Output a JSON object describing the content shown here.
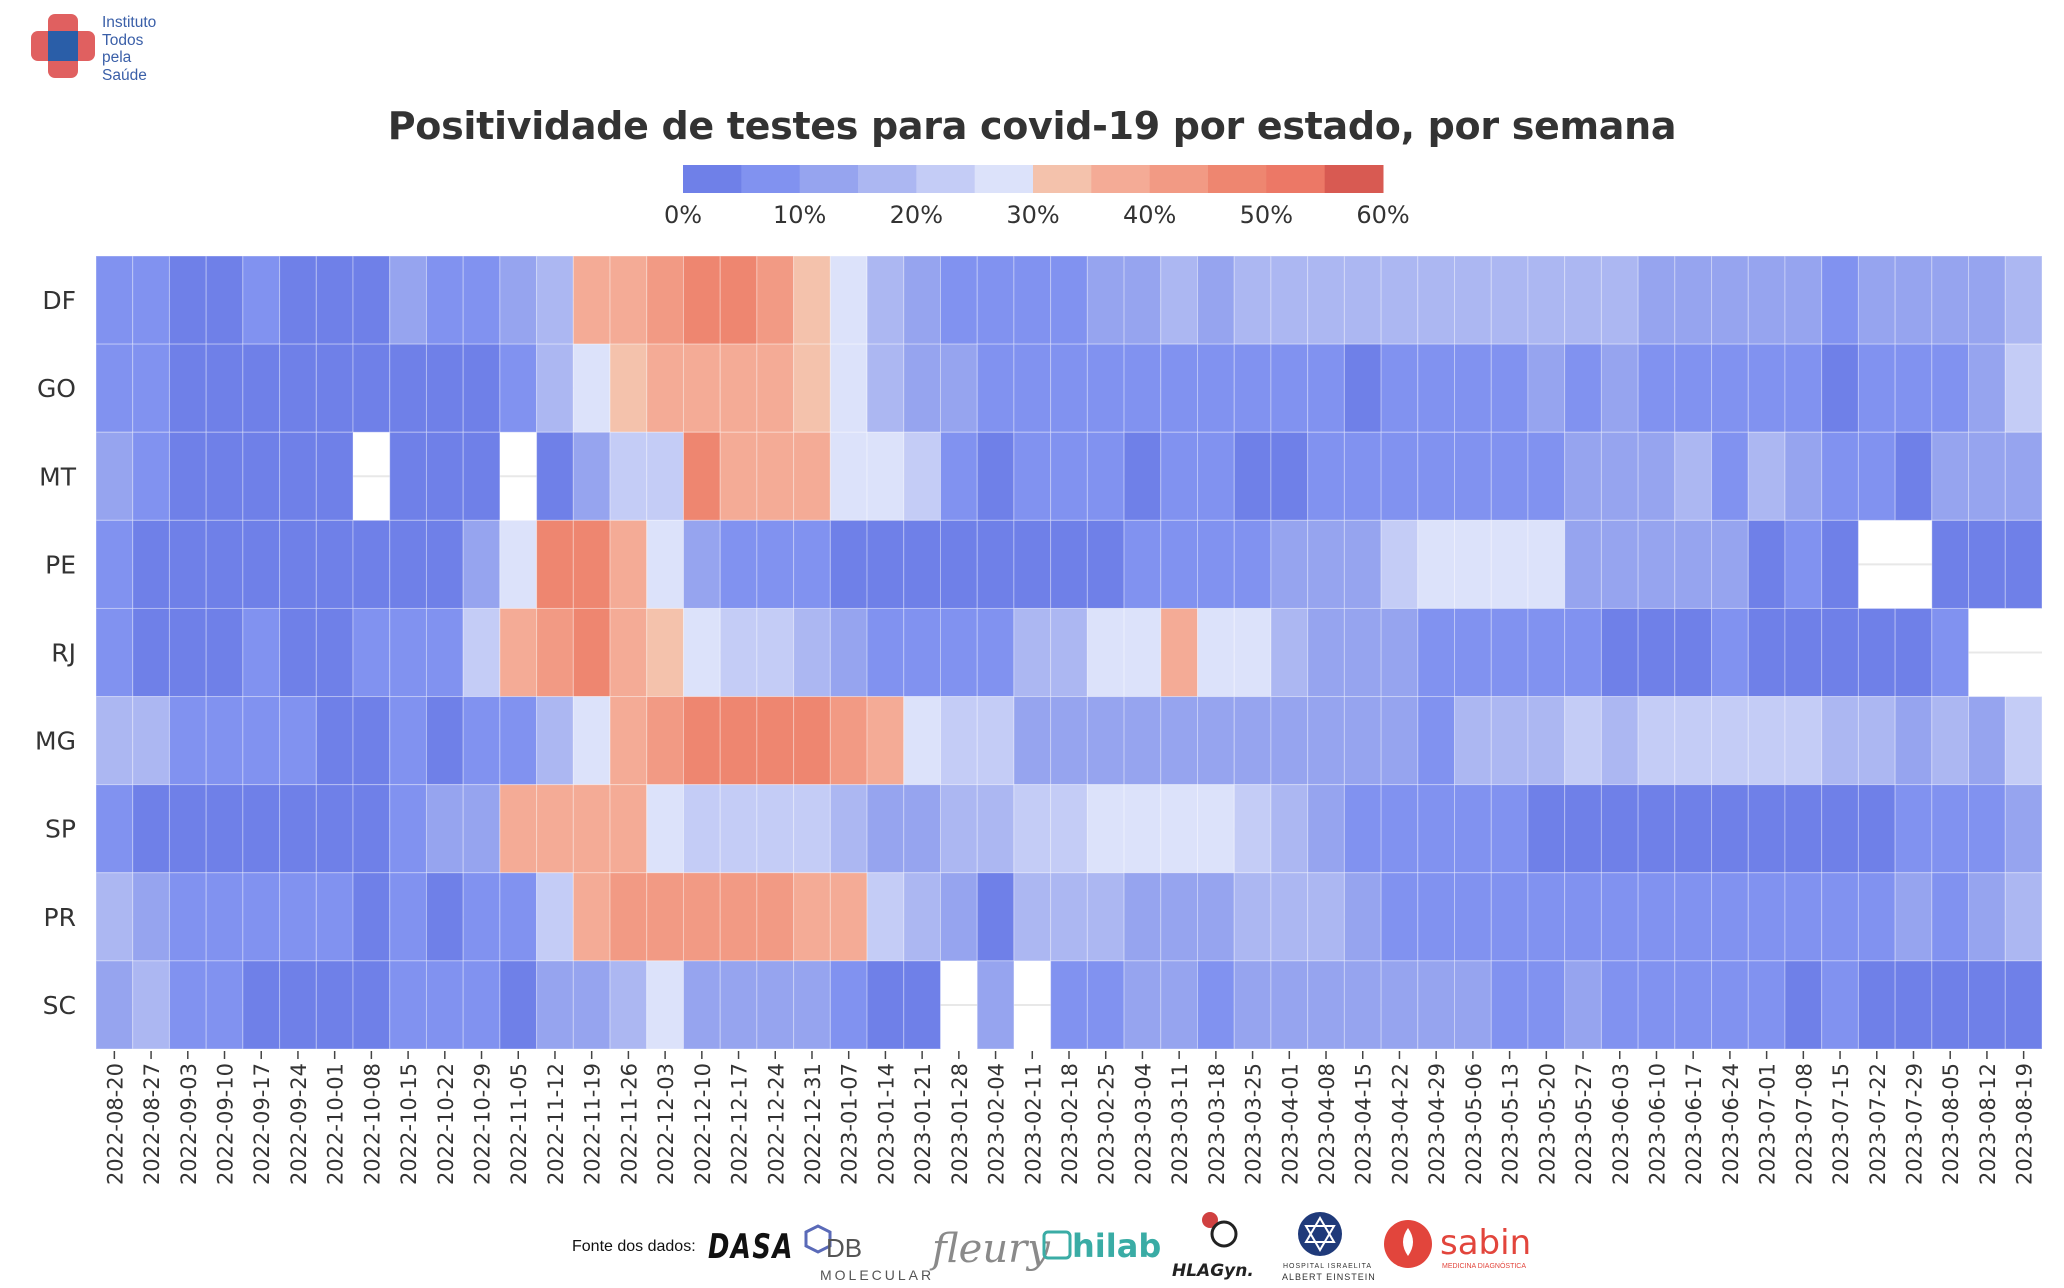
{
  "logo": {
    "lines": [
      "Instituto",
      "Todos",
      "pela",
      "Saúde"
    ],
    "colors": {
      "cross": "#e06060",
      "center": "#2a5ea8"
    }
  },
  "title": "Positividade de testes para covid-19 por estado, por semana",
  "chart_data": {
    "type": "heatmap",
    "title": "Positividade de testes para covid-19 por estado, por semana",
    "xlabel": "",
    "ylabel": "",
    "x": [
      "2022-08-20",
      "2022-08-27",
      "2022-09-03",
      "2022-09-10",
      "2022-09-17",
      "2022-09-24",
      "2022-10-01",
      "2022-10-08",
      "2022-10-15",
      "2022-10-22",
      "2022-10-29",
      "2022-11-05",
      "2022-11-12",
      "2022-11-19",
      "2022-11-26",
      "2022-12-03",
      "2022-12-10",
      "2022-12-17",
      "2022-12-24",
      "2022-12-31",
      "2023-01-07",
      "2023-01-14",
      "2023-01-21",
      "2023-01-28",
      "2023-02-04",
      "2023-02-11",
      "2023-02-18",
      "2023-02-25",
      "2023-03-04",
      "2023-03-11",
      "2023-03-18",
      "2023-03-25",
      "2023-04-01",
      "2023-04-08",
      "2023-04-15",
      "2023-04-22",
      "2023-04-29",
      "2023-05-06",
      "2023-05-13",
      "2023-05-20",
      "2023-05-27",
      "2023-06-03",
      "2023-06-10",
      "2023-06-17",
      "2023-06-24",
      "2023-07-01",
      "2023-07-08",
      "2023-07-15",
      "2023-07-22",
      "2023-07-29",
      "2023-08-05",
      "2023-08-12",
      "2023-08-19"
    ],
    "y": [
      "DF",
      "GO",
      "MT",
      "PE",
      "RJ",
      "MG",
      "SP",
      "PR",
      "SC"
    ],
    "colorbar": {
      "ticks": [
        "0%",
        "10%",
        "20%",
        "30%",
        "40%",
        "50%",
        "60%"
      ],
      "range": [
        0,
        60
      ],
      "colors": [
        "#6f80e8",
        "#8192f0",
        "#96a4ef",
        "#acb7f2",
        "#c4ccf6",
        "#dce2fa",
        "#f4c2ac",
        "#f4ab96",
        "#f29a84",
        "#ee8670",
        "#ec7866",
        "#d85a52"
      ]
    },
    "values": [
      [
        5,
        7,
        3,
        3,
        6,
        4,
        3,
        3,
        12,
        8,
        7,
        11,
        15,
        37,
        37,
        44,
        48,
        49,
        43,
        34,
        28,
        15,
        12,
        8,
        5,
        8,
        5,
        13,
        13,
        16,
        13,
        17,
        16,
        17,
        16,
        16,
        15,
        16,
        16,
        16,
        16,
        16,
        14,
        14,
        14,
        12,
        10,
        9,
        12,
        12,
        12,
        14,
        15
      ],
      [
        7,
        7,
        3,
        3,
        3,
        3,
        3,
        3,
        3,
        3,
        2,
        6,
        15,
        28,
        34,
        37,
        38,
        38,
        37,
        34,
        28,
        15,
        11,
        11,
        6,
        6,
        6,
        7,
        7,
        7,
        6,
        9,
        7,
        7,
        3,
        6,
        7,
        7,
        6,
        11,
        9,
        11,
        7,
        7,
        9,
        7,
        7,
        3,
        7,
        7,
        5,
        11,
        21
      ],
      [
        11,
        7,
        3,
        3,
        3,
        3,
        3,
        null,
        3,
        3,
        3,
        null,
        1,
        11,
        23,
        23,
        45,
        38,
        38,
        38,
        28,
        28,
        21,
        6,
        3,
        5,
        5,
        5,
        1,
        5,
        5,
        2,
        2,
        7,
        7,
        7,
        7,
        7,
        7,
        9,
        11,
        11,
        12,
        16,
        7,
        16,
        12,
        7,
        9,
        3,
        12,
        12,
        12
      ],
      [
        6,
        3,
        3,
        3,
        3,
        3,
        3,
        3,
        3,
        3,
        11,
        27,
        45,
        47,
        38,
        27,
        11,
        9,
        9,
        6,
        3,
        3,
        3,
        3,
        3,
        3,
        3,
        3,
        7,
        5,
        5,
        5,
        11,
        11,
        11,
        21,
        28,
        28,
        28,
        28,
        14,
        11,
        11,
        12,
        12,
        3,
        7,
        3,
        null,
        null,
        4,
        4,
        4
      ],
      [
        6,
        3,
        3,
        3,
        6,
        4,
        3,
        7,
        7,
        9,
        20,
        35,
        41,
        45,
        38,
        34,
        27,
        21,
        21,
        15,
        14,
        9,
        9,
        5,
        6,
        15,
        15,
        28,
        28,
        38,
        28,
        28,
        15,
        14,
        11,
        11,
        6,
        7,
        7,
        7,
        7,
        3,
        3,
        3,
        7,
        4,
        4,
        4,
        4,
        4,
        6,
        null,
        null
      ],
      [
        15,
        17,
        9,
        8,
        9,
        6,
        3,
        3,
        7,
        3,
        7,
        7,
        15,
        27,
        38,
        40,
        48,
        48,
        48,
        45,
        43,
        35,
        27,
        22,
        23,
        11,
        11,
        11,
        11,
        11,
        11,
        11,
        11,
        12,
        11,
        11,
        6,
        15,
        16,
        16,
        21,
        16,
        21,
        21,
        21,
        20,
        20,
        16,
        15,
        12,
        15,
        11,
        22
      ],
      [
        6,
        3,
        3,
        3,
        3,
        3,
        3,
        3,
        6,
        11,
        12,
        35,
        38,
        38,
        35,
        27,
        21,
        21,
        21,
        21,
        15,
        14,
        11,
        15,
        15,
        21,
        21,
        28,
        28,
        28,
        28,
        24,
        16,
        11,
        6,
        6,
        6,
        6,
        6,
        3,
        3,
        3,
        3,
        3,
        3,
        3,
        3,
        3,
        3,
        6,
        6,
        7,
        11
      ],
      [
        15,
        11,
        9,
        9,
        9,
        8,
        7,
        3,
        6,
        4,
        6,
        9,
        20,
        38,
        41,
        41,
        44,
        41,
        41,
        39,
        37,
        20,
        16,
        10,
        3,
        15,
        15,
        15,
        11,
        11,
        11,
        15,
        15,
        15,
        12,
        7,
        7,
        7,
        7,
        7,
        7,
        7,
        7,
        7,
        7,
        7,
        7,
        7,
        7,
        12,
        7,
        12,
        15
      ],
      [
        12,
        17,
        9,
        7,
        3,
        3,
        3,
        3,
        7,
        7,
        7,
        3,
        10,
        13,
        18,
        27,
        13,
        13,
        13,
        11,
        7,
        3,
        1,
        null,
        12,
        null,
        5,
        6,
        11,
        11,
        6,
        11,
        14,
        14,
        11,
        11,
        11,
        11,
        7,
        7,
        14,
        7,
        7,
        7,
        7,
        7,
        3,
        7,
        3,
        3,
        3,
        3,
        3
      ]
    ]
  },
  "sources": {
    "label": "Fonte dos dados:",
    "items": [
      "DASA",
      "DB Molecular",
      "fleury",
      "hilab",
      "HLAGyn.",
      "Albert Einstein",
      "sabin"
    ],
    "subtitles": {
      "db": "MOLECULAR",
      "einstein": "ALBERT EINSTEIN",
      "einstein_top": "HOSPITAL ISRAELITA",
      "sabin": "MEDICINA DIAGNÓSTICA"
    }
  }
}
